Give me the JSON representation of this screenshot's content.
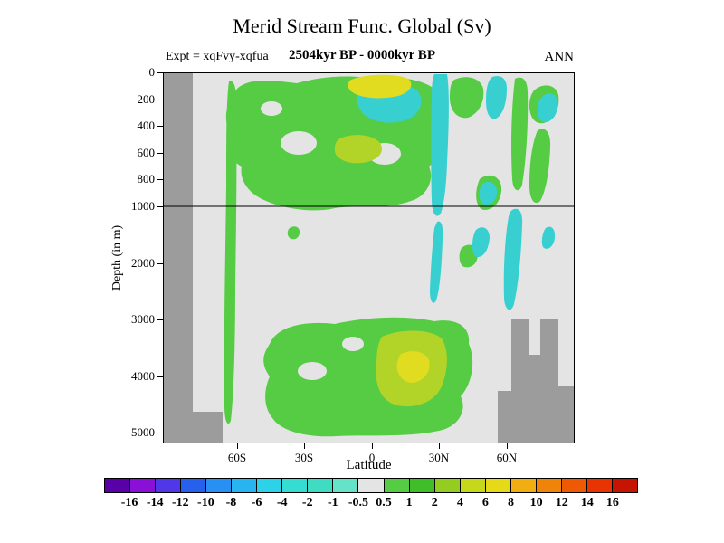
{
  "header": {
    "title": "Merid Stream Func. Global (Sv)",
    "experiment": "Expt = xqFvy-xqfua",
    "period": "2504kyr BP - 0000kyr BP",
    "season": "ANN"
  },
  "axes": {
    "x_title": "Latitude",
    "y_title": "Depth (in m)",
    "x_ticks": [
      "60S",
      "30S",
      "0",
      "30N",
      "60N"
    ],
    "y_ticks": [
      "0",
      "200",
      "400",
      "600",
      "800",
      "1000",
      "2000",
      "3000",
      "4000",
      "5000"
    ]
  },
  "colorbar": {
    "labels": [
      "-16",
      "-14",
      "-12",
      "-10",
      "-8",
      "-6",
      "-4",
      "-2",
      "-1",
      "-0.5",
      "0.5",
      "1",
      "2",
      "4",
      "6",
      "8",
      "10",
      "12",
      "14",
      "16"
    ],
    "colors": [
      "#5a00a8",
      "#8a10d8",
      "#5038e8",
      "#2860ee",
      "#2890f2",
      "#28b4f0",
      "#2cd2e8",
      "#34dcd2",
      "#40dcc2",
      "#66e2c8",
      "#e4e4e4",
      "#55cc44",
      "#3fbe2a",
      "#94cc20",
      "#c6d81a",
      "#e6da18",
      "#f0ae10",
      "#f08408",
      "#ee5a04",
      "#e83402",
      "#c61402"
    ]
  },
  "palette": {
    "plot_bg": "#e4e4e4",
    "topo": "#9c9c9c",
    "green": "#55cc44",
    "yellow_green": "#b2d428",
    "yellow": "#e2dc20",
    "cyan": "#38cfd0",
    "axis": "#000000"
  },
  "chart_data": {
    "type": "heatmap",
    "subtype": "filled-contour latitude-depth section",
    "title": "Merid Stream Func. Global (Sv)",
    "annotations": [
      "Expt = xqFvy-xqfua",
      "2504kyr BP - 0000kyr BP",
      "ANN"
    ],
    "xlabel": "Latitude",
    "ylabel": "Depth (in m)",
    "units": "Sv",
    "x_tick_labels": [
      "60S",
      "30S",
      "0",
      "30N",
      "60N"
    ],
    "x_range": [
      "~90S",
      "~90N"
    ],
    "y_tick_labels_m": [
      0,
      200,
      400,
      600,
      800,
      1000,
      2000,
      3000,
      4000,
      5000
    ],
    "y_range_m": [
      0,
      5200
    ],
    "y_axis_note": "split depth scale: 0-1000 m expanded, 1000-5000 m compressed; horizontal reference line drawn at 1000 m",
    "contour_levels": [
      -16,
      -14,
      -12,
      -10,
      -8,
      -6,
      -4,
      -2,
      -1,
      -0.5,
      0.5,
      1,
      2,
      4,
      6,
      8,
      10,
      12,
      14,
      16
    ],
    "legend_position": "horizontal colorbar below plot",
    "grid": false,
    "features": [
      "Positive cell (+0.5 to +6 Sv, green to yellow) fills most of the upper 1000 m from ~55S to ~27N; strongest values (+4 to +6 Sv, yellow) near the surface around 10S-5N and at ~400-600 m near 15S",
      "Deep positive cell (+0.5 to +4 Sv) between ~3000 m and the bottom from ~45S to ~25N, with a +2 to +4 Sv core near 5N at ~3800-4400 m",
      "Narrow positive band near 60S extending from the surface down to ~4600 m",
      "Negative streaks (-2 to -0.5 Sv, cyan) at the surface near 5S-10N, a vertical band along ~28N from the surface to ~2800 m, bands near 45N and 55-65N in the upper 500 m, and a streak near 55N from ~1000 to ~3000 m",
      "Dark gray = topography/no-data mask: column along the left (poleward of ~65S) reaching the bottom, and stepped bathymetry in the lower right (north of ~40N below ~3000 m)",
      "Light gray background corresponds to values between -0.5 and +0.5 Sv"
    ]
  }
}
